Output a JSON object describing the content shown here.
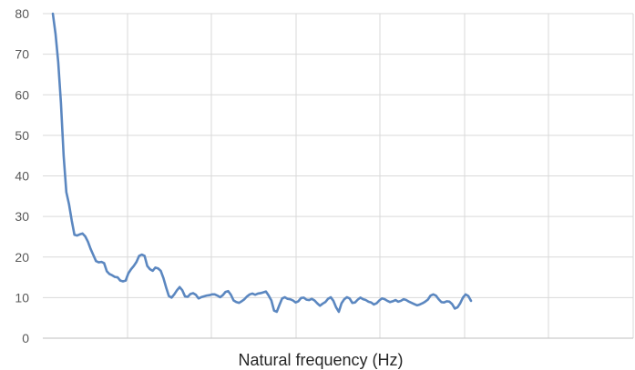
{
  "chart_data": {
    "type": "line",
    "title": "",
    "xlabel": "Natural frequency (Hz)",
    "ylabel": "",
    "ylim": [
      0,
      80
    ],
    "y_ticks": [
      "0",
      "10",
      "20",
      "30",
      "40",
      "50",
      "60",
      "70",
      "80"
    ],
    "x_gridline_count": 7,
    "grid": true,
    "legend": "none",
    "line_color": "#5b87c0",
    "grid_color": "#d9d9d9",
    "series": [
      {
        "values": [
          80,
          75,
          68,
          58,
          45,
          36,
          33,
          29,
          25.5,
          25.3,
          25.6,
          25.8,
          25.1,
          23.8,
          22,
          20.5,
          19,
          18.7,
          18.8,
          18.5,
          16.5,
          15.8,
          15.5,
          15.1,
          15,
          14.2,
          14,
          14.2,
          16,
          17,
          17.8,
          18.8,
          20.3,
          20.6,
          20.3,
          17.8,
          17,
          16.6,
          17.4,
          17.2,
          16.6,
          14.8,
          12.5,
          10.4,
          10,
          10.8,
          11.8,
          12.6,
          11.8,
          10.3,
          10.2,
          10.9,
          11.1,
          10.7,
          9.8,
          10.1,
          10.3,
          10.5,
          10.6,
          10.8,
          10.8,
          10.5,
          10.1,
          10.6,
          11.4,
          11.6,
          10.7,
          9.3,
          8.9,
          8.7,
          9.1,
          9.6,
          10.3,
          10.8,
          11.0,
          10.7,
          11.0,
          11.1,
          11.3,
          11.5,
          10.5,
          9.3,
          6.8,
          6.5,
          8.2,
          9.8,
          10.1,
          9.7,
          9.6,
          9.3,
          8.8,
          9.1,
          9.9,
          10.0,
          9.5,
          9.4,
          9.7,
          9.3,
          8.6,
          8.0,
          8.5,
          8.9,
          9.7,
          10.1,
          9.2,
          7.6,
          6.5,
          8.6,
          9.6,
          10.1,
          9.8,
          8.7,
          8.8,
          9.5,
          10.0,
          9.6,
          9.4,
          9.0,
          8.8,
          8.3,
          8.6,
          9.3,
          9.8,
          9.6,
          9.2,
          8.9,
          9.1,
          9.4,
          9.0,
          9.2,
          9.6,
          9.4,
          9.0,
          8.7,
          8.4,
          8.1,
          8.3,
          8.6,
          9.0,
          9.5,
          10.5,
          10.8,
          10.5,
          9.6,
          8.9,
          8.8,
          9.1,
          9.0,
          8.4,
          7.3,
          7.6,
          8.6,
          10.0,
          10.8,
          10.4,
          9.2
        ]
      }
    ]
  }
}
